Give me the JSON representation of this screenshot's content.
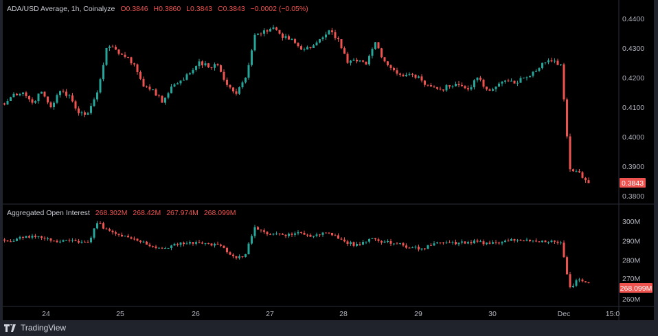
{
  "chart_data": [
    {
      "type": "candlestick",
      "title": "ADA/USD Average, 1h, Coinalyze",
      "ohlc_readout": {
        "open": "O0.3846",
        "high": "H0.3860",
        "low": "L0.3843",
        "close": "C0.3843",
        "change": "−0.0002 (−0.05%)"
      },
      "interval": "1h",
      "start": "Nov 23 10:00",
      "sample_step_hours": 3,
      "close_samples": [
        0.4109,
        0.4145,
        0.415,
        0.4115,
        0.4152,
        0.41,
        0.4155,
        0.414,
        0.408,
        0.408,
        0.415,
        0.43,
        0.4295,
        0.427,
        0.4245,
        0.417,
        0.416,
        0.4115,
        0.417,
        0.419,
        0.4215,
        0.4255,
        0.4235,
        0.4242,
        0.4175,
        0.4145,
        0.42,
        0.4345,
        0.436,
        0.437,
        0.4335,
        0.433,
        0.4295,
        0.43,
        0.433,
        0.436,
        0.433,
        0.425,
        0.4255,
        0.4245,
        0.432,
        0.4255,
        0.4225,
        0.4205,
        0.421,
        0.419,
        0.417,
        0.416,
        0.417,
        0.4175,
        0.416,
        0.42,
        0.416,
        0.417,
        0.419,
        0.418,
        0.42,
        0.422,
        0.425,
        0.4255,
        0.4245,
        0.389,
        0.388,
        0.3843
      ],
      "ylim": [
        0.378,
        0.442
      ],
      "y_ticks": [
        "0.4400",
        "0.4300",
        "0.4200",
        "0.4100",
        "0.4000",
        "0.3900",
        "0.3800"
      ],
      "last_price_label": "0.3843",
      "grid": false
    },
    {
      "type": "candlestick",
      "title": "Aggregated Open Interest",
      "readout": [
        "268.302M",
        "268.42M",
        "267.974M",
        "268.099M"
      ],
      "close_samples_millions": [
        290.1,
        289.8,
        291.5,
        292.5,
        291.5,
        290,
        289.5,
        290,
        289,
        289.2,
        299,
        296,
        293.6,
        292.5,
        291,
        289.5,
        287,
        286,
        287.5,
        289,
        289.3,
        289,
        288.5,
        288,
        284,
        281,
        283,
        297,
        294.5,
        293.6,
        293,
        293,
        294,
        292,
        293,
        294,
        291,
        288.3,
        288.3,
        289.5,
        290.7,
        289.5,
        288.5,
        287.5,
        286.5,
        286,
        287.5,
        289,
        289,
        289,
        289.3,
        289.5,
        289,
        289,
        290,
        290,
        290,
        290,
        290,
        290,
        289,
        266,
        270,
        268.1
      ],
      "ylim": [
        257,
        309
      ],
      "y_ticks": [
        "300M",
        "290M",
        "280M",
        "270M",
        "260M"
      ],
      "last_value_label": "268.099M"
    }
  ],
  "x_axis": {
    "ticks": [
      "24",
      "25",
      "26",
      "27",
      "28",
      "29",
      "30",
      "Dec",
      "15:0"
    ]
  },
  "colors": {
    "up": "#26a69a",
    "down": "#ef5350",
    "background": "#000000",
    "text": "#c9ccd3"
  },
  "footer": {
    "brand": "TradingView"
  }
}
